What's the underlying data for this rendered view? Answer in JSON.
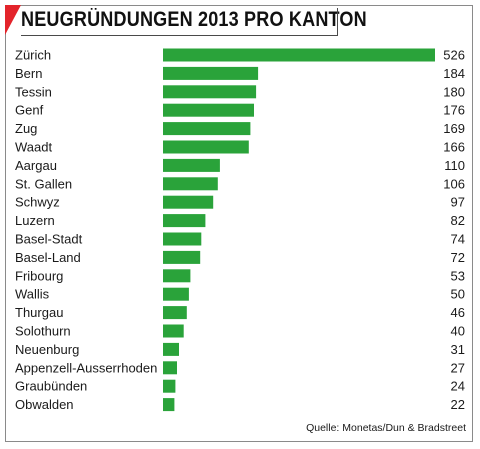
{
  "title": "NEUGRÜNDUNGEN 2013 PRO KANTON",
  "source": "Quelle: Monetas/Dun & Bradstreet",
  "colors": {
    "bar": "#2aa33a",
    "accent": "#e3242b"
  },
  "chart_data": {
    "type": "bar",
    "orientation": "horizontal",
    "title": "NEUGRÜNDUNGEN 2013 PRO KANTON",
    "categories": [
      "Zürich",
      "Bern",
      "Tessin",
      "Genf",
      "Zug",
      "Waadt",
      "Aargau",
      "St. Gallen",
      "Schwyz",
      "Luzern",
      "Basel-Stadt",
      "Basel-Land",
      "Fribourg",
      "Wallis",
      "Thurgau",
      "Solothurn",
      "Neuenburg",
      "Appenzell-Ausserrhoden",
      "Graubünden",
      "Obwalden"
    ],
    "values": [
      526,
      184,
      180,
      176,
      169,
      166,
      110,
      106,
      97,
      82,
      74,
      72,
      53,
      50,
      46,
      40,
      31,
      27,
      24,
      22
    ],
    "value_labels": [
      "526",
      "184",
      "180",
      "176",
      "169",
      "166",
      "110",
      "106",
      "97",
      "82",
      "74",
      "72",
      "53",
      "50",
      "46",
      "40",
      "31",
      "27",
      "24",
      "22"
    ],
    "xlim": [
      0,
      526
    ],
    "grid": false,
    "legend": "none"
  }
}
